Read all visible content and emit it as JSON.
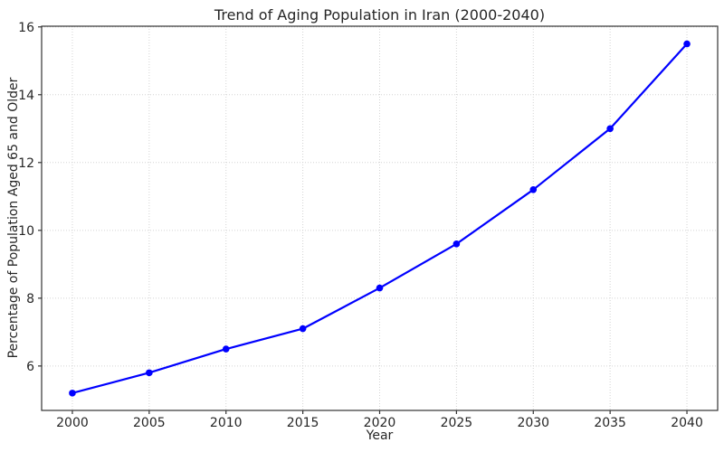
{
  "chart_data": {
    "type": "line",
    "title": "Trend of Aging Population in Iran (2000-2040)",
    "xlabel": "Year",
    "ylabel": "Percentage of Population Aged 65 and Older",
    "x": [
      2000,
      2005,
      2010,
      2015,
      2020,
      2025,
      2030,
      2035,
      2040
    ],
    "values": [
      5.2,
      5.8,
      6.5,
      7.1,
      8.3,
      9.6,
      11.2,
      13.0,
      15.5
    ],
    "xticks": [
      "2000",
      "2005",
      "2010",
      "2015",
      "2020",
      "2025",
      "2030",
      "2035",
      "2040"
    ],
    "yticks": [
      "6",
      "8",
      "10",
      "12",
      "14",
      "16"
    ],
    "xtick_values": [
      2000,
      2005,
      2010,
      2015,
      2020,
      2025,
      2030,
      2035,
      2040
    ],
    "ytick_values": [
      6,
      8,
      10,
      12,
      14,
      16
    ],
    "xlim": [
      1998,
      2042
    ],
    "ylim": [
      4.69,
      16.02
    ],
    "grid": true,
    "grid_linestyle": "dotted",
    "legend_position": "none",
    "marker": "circle"
  },
  "style": {
    "line_color": "#0000ff",
    "marker_color": "#0000ff",
    "grid_color": "#d4d4d4",
    "spine_color": "#333333",
    "tick_color": "#333333",
    "text_color": "#262626",
    "background": "#ffffff"
  }
}
